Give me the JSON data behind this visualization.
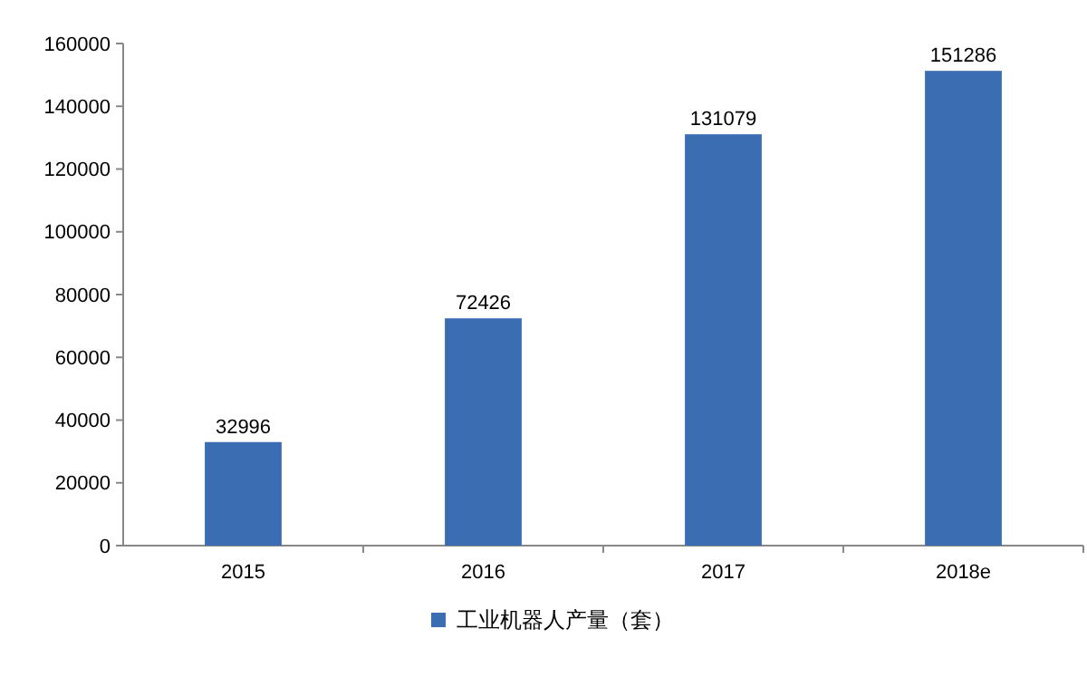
{
  "chart_data": {
    "type": "bar",
    "categories": [
      "2015",
      "2016",
      "2017",
      "2018e"
    ],
    "series": [
      {
        "name": "工业机器人产量（套）",
        "color": "#3b6db3",
        "values": [
          32996,
          72426,
          131079,
          151286
        ]
      }
    ],
    "ylim": [
      0,
      160000
    ],
    "yticks": [
      0,
      20000,
      40000,
      60000,
      80000,
      100000,
      120000,
      140000,
      160000
    ],
    "data_labels": true,
    "legend": "bottom",
    "grid": false
  }
}
